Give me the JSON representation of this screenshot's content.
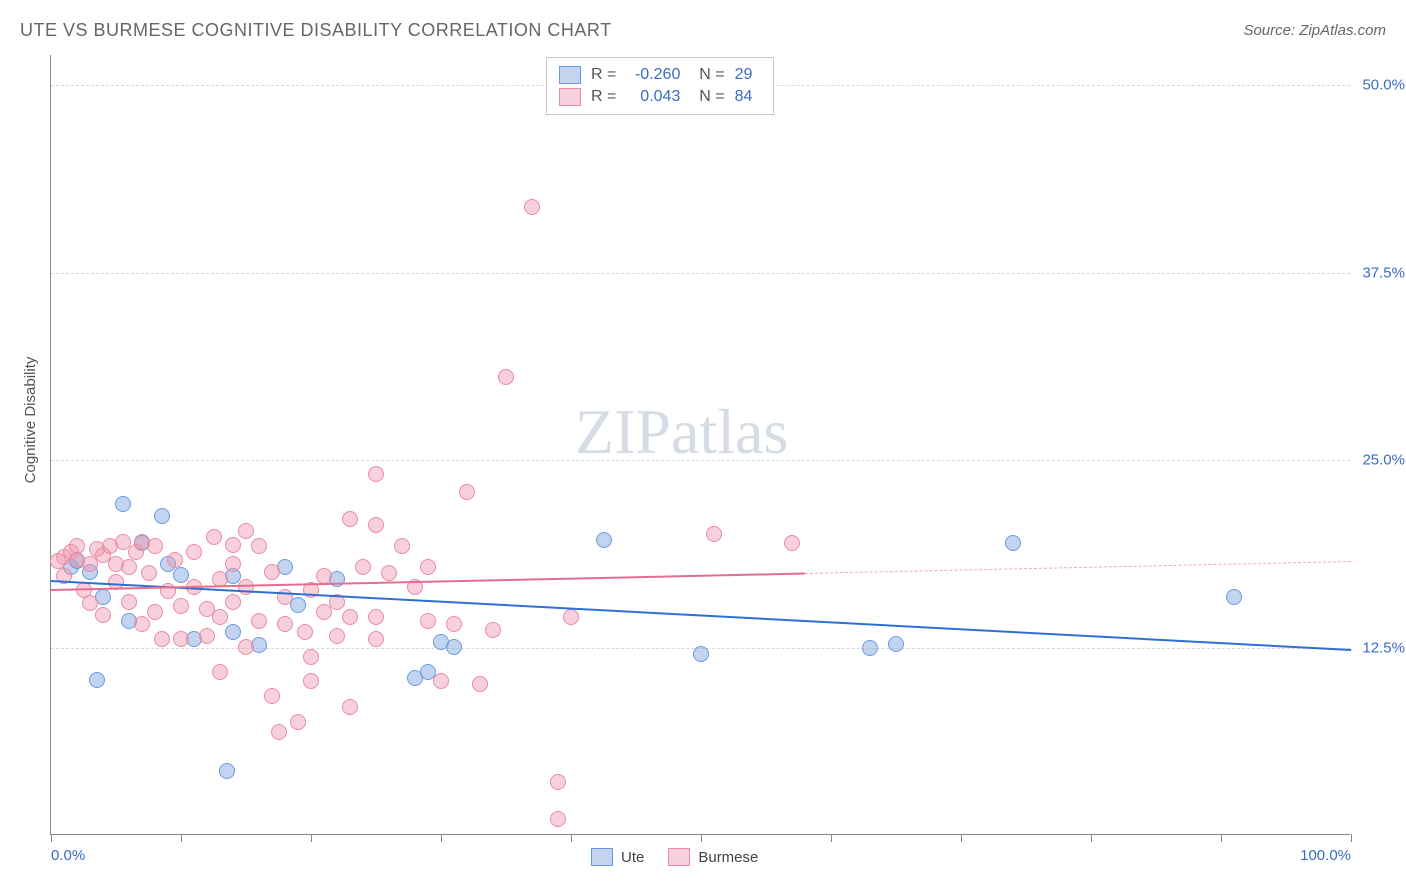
{
  "title": "UTE VS BURMESE COGNITIVE DISABILITY CORRELATION CHART",
  "source_label": "Source: ZipAtlas.com",
  "yaxis_label": "Cognitive Disability",
  "watermark": "ZIPatlas",
  "chart": {
    "type": "scatter",
    "background": "#ffffff",
    "grid_color": "#d8d8d8",
    "axis_color": "#888888",
    "xlim": [
      0,
      100
    ],
    "ylim": [
      0,
      52
    ],
    "xticks": [
      0,
      10,
      20,
      30,
      40,
      50,
      60,
      70,
      80,
      90,
      100
    ],
    "xticks_labeled": [
      {
        "v": 0,
        "label": "0.0%"
      },
      {
        "v": 100,
        "label": "100.0%"
      }
    ],
    "yticks": [
      {
        "v": 12.5,
        "label": "12.5%"
      },
      {
        "v": 25.0,
        "label": "25.0%"
      },
      {
        "v": 37.5,
        "label": "37.5%"
      },
      {
        "v": 50.0,
        "label": "50.0%"
      }
    ],
    "tick_label_color": "#3a6bc7",
    "tick_fontsize": 15,
    "title_fontsize": 18,
    "title_color": "#666666",
    "series": [
      {
        "name": "Ute",
        "fill": "rgba(120, 160, 220, 0.45)",
        "stroke": "#6a9be0",
        "marker_size": 16,
        "R": "-0.260",
        "N": "29",
        "trend": {
          "x1": 0,
          "y1": 17.0,
          "x2": 100,
          "y2": 12.4,
          "color": "#2f6fd4",
          "width": 2,
          "dash": false
        },
        "points": [
          [
            1.5,
            17.8
          ],
          [
            2,
            18.2
          ],
          [
            3.5,
            10.3
          ],
          [
            5.5,
            22.0
          ],
          [
            8.5,
            21.2
          ],
          [
            7,
            19.4
          ],
          [
            6,
            14.2
          ],
          [
            10,
            17.3
          ],
          [
            11,
            13.0
          ],
          [
            13.5,
            4.2
          ],
          [
            14,
            13.5
          ],
          [
            14,
            17.2
          ],
          [
            16,
            12.6
          ],
          [
            18,
            17.8
          ],
          [
            19,
            15.3
          ],
          [
            22,
            17.0
          ],
          [
            28,
            10.4
          ],
          [
            29,
            10.8
          ],
          [
            30,
            12.8
          ],
          [
            31,
            12.5
          ],
          [
            42.5,
            19.6
          ],
          [
            50,
            12.0
          ],
          [
            63,
            12.4
          ],
          [
            65,
            12.7
          ],
          [
            74,
            19.4
          ],
          [
            91,
            15.8
          ],
          [
            3,
            17.5
          ],
          [
            4,
            15.8
          ],
          [
            9,
            18.0
          ]
        ]
      },
      {
        "name": "Burmese",
        "fill": "rgba(240, 150, 175, 0.45)",
        "stroke": "#e98ba5",
        "marker_size": 16,
        "R": "0.043",
        "N": "84",
        "trend_solid": {
          "x1": 0,
          "y1": 16.4,
          "x2": 58,
          "y2": 17.5,
          "color": "#e56d8e",
          "width": 2
        },
        "trend_dashed": {
          "x1": 58,
          "y1": 17.5,
          "x2": 100,
          "y2": 18.3,
          "color": "#f0a8bb",
          "width": 1.5
        },
        "points": [
          [
            1,
            18.5
          ],
          [
            1.5,
            18.8
          ],
          [
            2,
            19.2
          ],
          [
            2,
            18.3
          ],
          [
            3,
            18.0
          ],
          [
            3.5,
            19.0
          ],
          [
            4,
            18.6
          ],
          [
            4.5,
            19.2
          ],
          [
            5,
            16.8
          ],
          [
            5,
            18.0
          ],
          [
            5.5,
            19.5
          ],
          [
            6,
            15.5
          ],
          [
            6.5,
            18.8
          ],
          [
            7,
            19.5
          ],
          [
            7.5,
            17.4
          ],
          [
            8,
            14.8
          ],
          [
            8,
            19.2
          ],
          [
            9,
            16.2
          ],
          [
            9.5,
            18.3
          ],
          [
            10,
            15.2
          ],
          [
            10,
            13.0
          ],
          [
            11,
            16.5
          ],
          [
            11,
            18.8
          ],
          [
            12,
            13.2
          ],
          [
            12,
            15.0
          ],
          [
            12.5,
            19.8
          ],
          [
            13,
            17.0
          ],
          [
            13,
            14.5
          ],
          [
            13,
            10.8
          ],
          [
            14,
            19.3
          ],
          [
            14,
            18.0
          ],
          [
            14,
            15.5
          ],
          [
            15,
            20.2
          ],
          [
            15,
            16.5
          ],
          [
            15,
            12.5
          ],
          [
            16,
            19.2
          ],
          [
            16,
            14.2
          ],
          [
            17,
            9.2
          ],
          [
            17,
            17.5
          ],
          [
            17.5,
            6.8
          ],
          [
            18,
            14.0
          ],
          [
            18,
            15.8
          ],
          [
            19,
            7.5
          ],
          [
            19.5,
            13.5
          ],
          [
            20,
            11.8
          ],
          [
            20,
            16.3
          ],
          [
            20,
            10.2
          ],
          [
            21,
            14.8
          ],
          [
            21,
            17.2
          ],
          [
            22,
            13.2
          ],
          [
            22,
            15.5
          ],
          [
            23,
            14.5
          ],
          [
            23,
            21.0
          ],
          [
            24,
            17.8
          ],
          [
            25,
            24.0
          ],
          [
            25,
            20.6
          ],
          [
            25,
            14.5
          ],
          [
            25,
            13.0
          ],
          [
            26,
            17.4
          ],
          [
            27,
            19.2
          ],
          [
            28,
            16.5
          ],
          [
            29,
            14.2
          ],
          [
            29,
            17.8
          ],
          [
            30,
            10.2
          ],
          [
            31,
            14.0
          ],
          [
            32,
            22.8
          ],
          [
            34,
            13.6
          ],
          [
            35,
            30.5
          ],
          [
            37,
            41.8
          ],
          [
            39,
            1.0
          ],
          [
            39,
            3.5
          ],
          [
            40,
            14.5
          ],
          [
            51,
            20.0
          ],
          [
            57,
            19.4
          ],
          [
            0.5,
            18.2
          ],
          [
            1,
            17.2
          ],
          [
            2.5,
            16.3
          ],
          [
            3,
            15.4
          ],
          [
            4,
            14.6
          ],
          [
            6,
            17.8
          ],
          [
            7,
            14.0
          ],
          [
            8.5,
            13.0
          ],
          [
            23,
            8.5
          ],
          [
            33,
            10.0
          ]
        ]
      }
    ]
  },
  "stats_box": {
    "bg": "#ffffff",
    "border": "#c8c8c8"
  },
  "legend": {
    "items": [
      {
        "label": "Ute",
        "fill": "rgba(120,160,220,0.45)",
        "stroke": "#6a9be0"
      },
      {
        "label": "Burmese",
        "fill": "rgba(240,150,175,0.45)",
        "stroke": "#e98ba5"
      }
    ]
  }
}
